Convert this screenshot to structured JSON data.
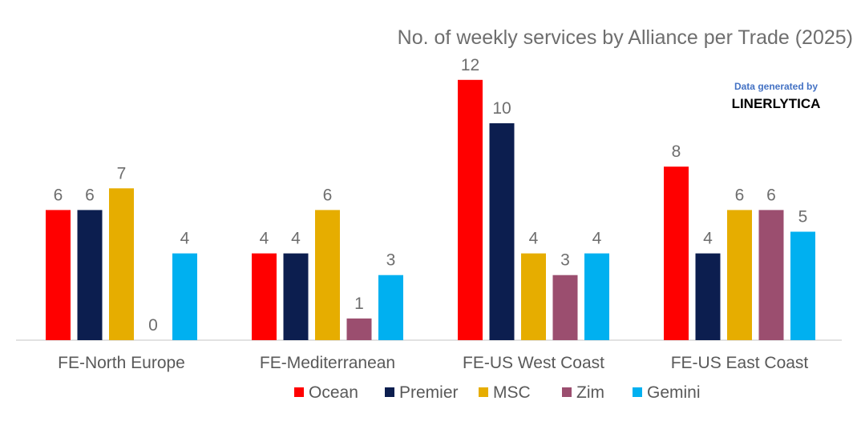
{
  "chart_data": {
    "type": "bar",
    "title": "No. of weekly services by Alliance per Trade (2025)",
    "categories": [
      "FE-North Europe",
      "FE-Mediterranean",
      "FE-US West Coast",
      "FE-US East Coast"
    ],
    "series": [
      {
        "name": "Ocean",
        "color": "#ff0000",
        "values": [
          6,
          4,
          12,
          8
        ]
      },
      {
        "name": "Premier",
        "color": "#0c1e4f",
        "values": [
          6,
          4,
          10,
          4
        ]
      },
      {
        "name": "MSC",
        "color": "#e6ad00",
        "values": [
          7,
          6,
          4,
          6
        ]
      },
      {
        "name": "Zim",
        "color": "#9b4e6f",
        "values": [
          0,
          1,
          3,
          6
        ]
      },
      {
        "name": "Gemini",
        "color": "#00b0f0",
        "values": [
          4,
          3,
          4,
          5
        ]
      }
    ],
    "ylim": [
      0,
      12
    ],
    "grid": false,
    "legend_position": "bottom",
    "watermark": {
      "line1": "Data generated by",
      "line2": "LINERLYTICA"
    }
  }
}
